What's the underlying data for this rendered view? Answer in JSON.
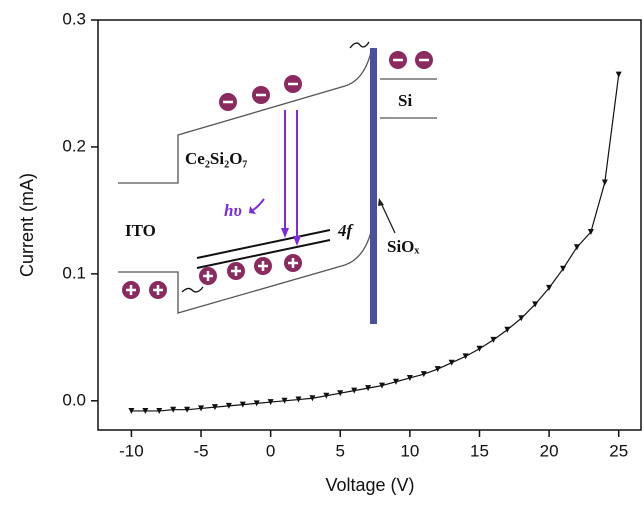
{
  "chart_data": {
    "type": "line",
    "xlabel": "Voltage (V)",
    "ylabel": "Current (mA)",
    "x": [
      -10,
      -9,
      -8,
      -7,
      -6,
      -5,
      -4,
      -3,
      -2,
      -1,
      0,
      1,
      2,
      3,
      4,
      5,
      6,
      7,
      8,
      9,
      10,
      11,
      12,
      13,
      14,
      15,
      16,
      17,
      18,
      19,
      20,
      21,
      22,
      23,
      24,
      25
    ],
    "values": [
      -0.008,
      -0.008,
      -0.008,
      -0.007,
      -0.007,
      -0.006,
      -0.005,
      -0.004,
      -0.003,
      -0.002,
      -0.001,
      0.0,
      0.001,
      0.002,
      0.004,
      0.006,
      0.008,
      0.01,
      0.012,
      0.015,
      0.018,
      0.021,
      0.025,
      0.03,
      0.035,
      0.041,
      0.048,
      0.056,
      0.065,
      0.076,
      0.089,
      0.104,
      0.121,
      0.133,
      0.172,
      0.257
    ],
    "color": "#111111",
    "xlim": [
      -12.4,
      26.6
    ],
    "xticks": [
      -10,
      -5,
      0,
      5,
      10,
      15,
      20,
      25
    ],
    "ylim": [
      -0.023,
      0.3
    ],
    "yticks": [
      {
        "value": 0,
        "label": "0.0"
      },
      0.1,
      0.2,
      0.3
    ],
    "annotations": [
      "Ce₂Si₂O₇",
      "ITO",
      "hυ",
      "4f",
      "Si",
      "SiOₓ"
    ]
  }
}
